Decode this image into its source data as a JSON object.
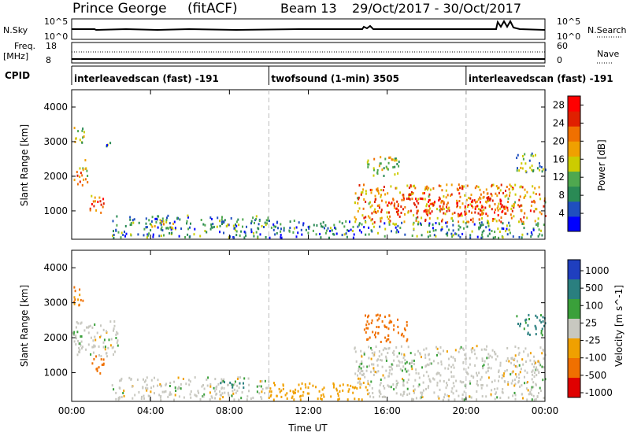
{
  "header": {
    "station": "Prince George",
    "mode": "(fitACF)",
    "beam": "Beam 13",
    "date_range": "29/Oct/2017 - 30/Oct/2017"
  },
  "noise_panel": {
    "left_label": "N.Sky",
    "right_label": "N.Search",
    "left_ticks": [
      "10^5",
      "10^0"
    ],
    "right_ticks": [
      "10^5",
      "10^0"
    ]
  },
  "freq_panel": {
    "left_label_1": "Freq.",
    "left_label_2": "[MHz]",
    "right_label": "Nave",
    "left_ticks": [
      "18",
      "8"
    ],
    "right_ticks": [
      "60",
      "0"
    ]
  },
  "cpid": {
    "label": "CPID",
    "segments": [
      {
        "text": "interleavedscan (fast) -191",
        "start_hour": 0,
        "end_hour": 10
      },
      {
        "text": "twofsound (1-min) 3505",
        "start_hour": 10,
        "end_hour": 20
      },
      {
        "text": "interleavedscan (fast) -191",
        "start_hour": 20,
        "end_hour": 24
      }
    ]
  },
  "axes": {
    "xlabel": "Time UT",
    "ylabel": "Slant Range [km]",
    "x_ticks": [
      "00:00",
      "04:00",
      "08:00",
      "12:00",
      "16:00",
      "20:00",
      "00:00"
    ],
    "y_ticks": [
      "1000",
      "2000",
      "3000",
      "4000"
    ]
  },
  "colors": {
    "power": [
      "#0000ff",
      "#1f4fbf",
      "#2a8a55",
      "#4fa84f",
      "#cccc00",
      "#f0a000",
      "#f07000",
      "#e02000",
      "#ff0000"
    ],
    "velocity": [
      "#1f3fbf",
      "#2a7f7f",
      "#3aa03a",
      "#c8c8c0",
      "#f0a000",
      "#f07000",
      "#e00000"
    ],
    "gray_scatter": "#c8c8c0"
  },
  "chart_data": [
    {
      "type": "heatmap",
      "title": "Power",
      "xlabel": "Time UT",
      "ylabel": "Slant Range [km]",
      "xlim": [
        0,
        24
      ],
      "ylim": [
        180,
        4500
      ],
      "colorbar": {
        "label": "Power [dB]",
        "ticks": [
          "4",
          "8",
          "12",
          "16",
          "20",
          "24",
          "28"
        ],
        "range": [
          0,
          30
        ]
      },
      "blobs": [
        {
          "t0": 0.0,
          "t1": 0.6,
          "r0": 2900,
          "r1": 3500,
          "v": 14
        },
        {
          "t0": 0.1,
          "t1": 0.8,
          "r0": 1700,
          "r1": 2500,
          "v": 20
        },
        {
          "t0": 0.9,
          "t1": 1.7,
          "r0": 900,
          "r1": 1500,
          "v": 22
        },
        {
          "t0": 1.6,
          "t1": 2.0,
          "r0": 2900,
          "r1": 3200,
          "v": 8
        },
        {
          "t0": 2.0,
          "t1": 10.0,
          "r0": 250,
          "r1": 900,
          "v": 8
        },
        {
          "t0": 3.8,
          "t1": 5.2,
          "r0": 500,
          "r1": 800,
          "v": 18
        },
        {
          "t0": 10.0,
          "t1": 15.0,
          "r0": 250,
          "r1": 750,
          "v": 7
        },
        {
          "t0": 14.3,
          "t1": 24.0,
          "r0": 700,
          "r1": 1800,
          "v": 20
        },
        {
          "t0": 16.0,
          "t1": 22.0,
          "r0": 900,
          "r1": 1400,
          "v": 26
        },
        {
          "t0": 14.8,
          "t1": 16.6,
          "r0": 2000,
          "r1": 2600,
          "v": 14
        },
        {
          "t0": 15.0,
          "t1": 24.0,
          "r0": 250,
          "r1": 700,
          "v": 9
        },
        {
          "t0": 22.5,
          "t1": 24.0,
          "r0": 2100,
          "r1": 2700,
          "v": 10
        }
      ]
    },
    {
      "type": "heatmap",
      "title": "Velocity",
      "xlabel": "Time UT",
      "ylabel": "Slant Range [km]",
      "xlim": [
        0,
        24
      ],
      "ylim": [
        180,
        4500
      ],
      "colorbar": {
        "label": "Velocity [m s^-1]",
        "ticks": [
          "1000",
          "500",
          "100",
          "25",
          "-25",
          "-100",
          "-500",
          "-1000"
        ]
      },
      "blobs": [
        {
          "t0": 0.0,
          "t1": 0.6,
          "r0": 2900,
          "r1": 3500,
          "v": -100
        },
        {
          "t0": 0.0,
          "t1": 2.4,
          "r0": 1500,
          "r1": 2500,
          "v": 0
        },
        {
          "t0": 0.9,
          "t1": 1.6,
          "r0": 1000,
          "r1": 1500,
          "v": -200
        },
        {
          "t0": 2.0,
          "t1": 10.0,
          "r0": 250,
          "r1": 900,
          "v": 0
        },
        {
          "t0": 7.5,
          "t1": 8.8,
          "r0": 600,
          "r1": 800,
          "v": 120
        },
        {
          "t0": 10.0,
          "t1": 15.0,
          "r0": 250,
          "r1": 750,
          "v": -60
        },
        {
          "t0": 14.3,
          "t1": 24.0,
          "r0": 700,
          "r1": 1800,
          "v": 0
        },
        {
          "t0": 14.8,
          "t1": 17.0,
          "r0": 1900,
          "r1": 2700,
          "v": -200
        },
        {
          "t0": 15.0,
          "t1": 24.0,
          "r0": 250,
          "r1": 700,
          "v": 0
        },
        {
          "t0": 22.5,
          "t1": 24.0,
          "r0": 2100,
          "r1": 2700,
          "v": 120
        }
      ]
    }
  ]
}
